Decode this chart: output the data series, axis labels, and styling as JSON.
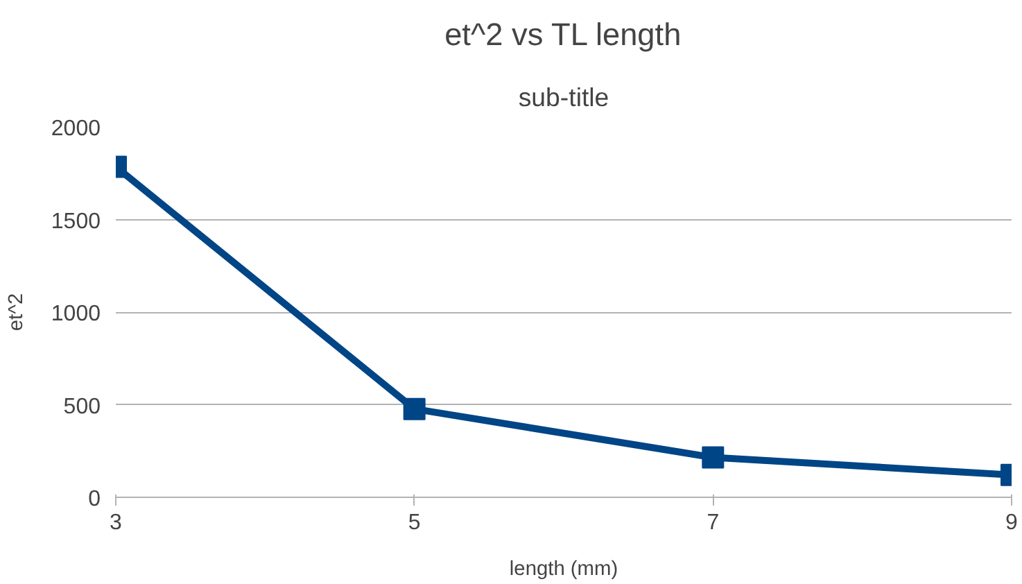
{
  "chart_data": {
    "type": "line",
    "title": "et^2 vs TL length",
    "subtitle": "sub-title",
    "xlabel": "length (mm)",
    "ylabel": "et^2",
    "x": [
      3,
      5,
      7,
      9
    ],
    "series": [
      {
        "color": "#004586",
        "values": [
          1785,
          477,
          215,
          121
        ]
      }
    ],
    "xlim": [
      3,
      9
    ],
    "xticks": [
      3,
      5,
      7,
      9
    ],
    "ylim": [
      0,
      2000
    ],
    "yticks": [
      0,
      500,
      1000,
      1500,
      2000
    ],
    "grid": "y",
    "marker": "square",
    "line_style": "solid"
  }
}
